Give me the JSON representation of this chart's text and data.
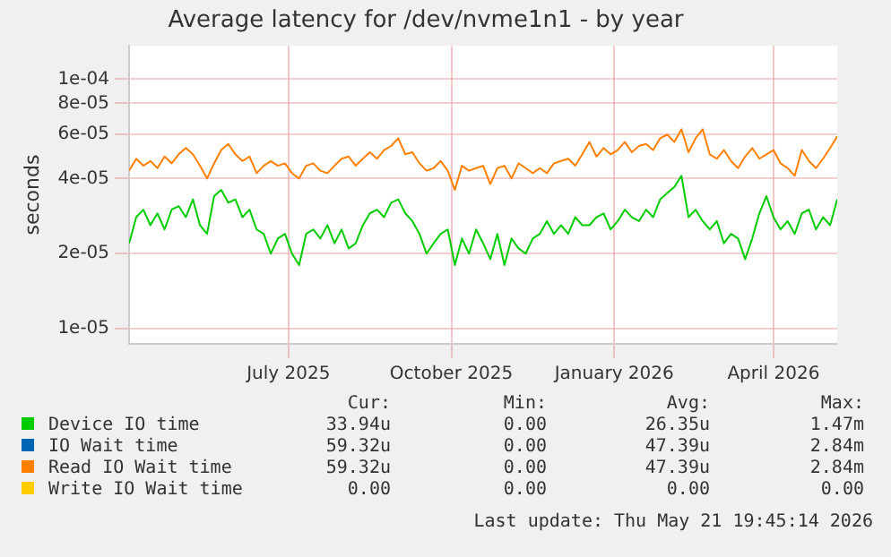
{
  "chart_data": {
    "type": "line",
    "title": "Average latency for /dev/nvme1n1 - by year",
    "ylabel": "seconds",
    "x": [
      "2025-04-16",
      "2025-04-20",
      "2025-04-24",
      "2025-04-28",
      "2025-05-02",
      "2025-05-06",
      "2025-05-10",
      "2025-05-14",
      "2025-05-18",
      "2025-05-22",
      "2025-05-26",
      "2025-05-30",
      "2025-06-03",
      "2025-06-07",
      "2025-06-11",
      "2025-06-15",
      "2025-06-19",
      "2025-06-23",
      "2025-06-27",
      "2025-07-01",
      "2025-07-05",
      "2025-07-09",
      "2025-07-13",
      "2025-07-17",
      "2025-07-21",
      "2025-07-25",
      "2025-07-29",
      "2025-08-02",
      "2025-08-06",
      "2025-08-10",
      "2025-08-14",
      "2025-08-18",
      "2025-08-22",
      "2025-08-26",
      "2025-08-30",
      "2025-09-03",
      "2025-09-07",
      "2025-09-11",
      "2025-09-15",
      "2025-09-19",
      "2025-09-23",
      "2025-09-27",
      "2025-10-01",
      "2025-10-05",
      "2025-10-09",
      "2025-10-13",
      "2025-10-17",
      "2025-10-21",
      "2025-10-25",
      "2025-10-29",
      "2025-11-02",
      "2025-11-06",
      "2025-11-10",
      "2025-11-14",
      "2025-11-18",
      "2025-11-22",
      "2025-11-26",
      "2025-11-30",
      "2025-12-04",
      "2025-12-08",
      "2025-12-12",
      "2025-12-16",
      "2025-12-20",
      "2025-12-24",
      "2025-12-28",
      "2026-01-01",
      "2026-01-05",
      "2026-01-09",
      "2026-01-13",
      "2026-01-17",
      "2026-01-21",
      "2026-01-25",
      "2026-01-29",
      "2026-02-02",
      "2026-02-06",
      "2026-02-10",
      "2026-02-14",
      "2026-02-18",
      "2026-02-22",
      "2026-02-26",
      "2026-03-02",
      "2026-03-06",
      "2026-03-10",
      "2026-03-14",
      "2026-03-18",
      "2026-03-22",
      "2026-03-26",
      "2026-03-30",
      "2026-04-03",
      "2026-04-07",
      "2026-04-11",
      "2026-04-15",
      "2026-04-19",
      "2026-04-23",
      "2026-04-27",
      "2026-05-01",
      "2026-05-05",
      "2026-05-09",
      "2026-05-13",
      "2026-05-17",
      "2026-05-21"
    ],
    "series": [
      {
        "name": "Device IO time",
        "color": "#00cc00",
        "values": [
          2.2e-05,
          2.8e-05,
          3e-05,
          2.6e-05,
          2.9e-05,
          2.5e-05,
          3e-05,
          3.1e-05,
          2.8e-05,
          3.3e-05,
          2.6e-05,
          2.4e-05,
          3.4e-05,
          3.6e-05,
          3.2e-05,
          3.3e-05,
          2.8e-05,
          3e-05,
          2.5e-05,
          2.4e-05,
          2e-05,
          2.3e-05,
          2.4e-05,
          2e-05,
          1.8e-05,
          2.4e-05,
          2.5e-05,
          2.3e-05,
          2.6e-05,
          2.2e-05,
          2.5e-05,
          2.1e-05,
          2.2e-05,
          2.6e-05,
          2.9e-05,
          3e-05,
          2.8e-05,
          3.2e-05,
          3.3e-05,
          2.9e-05,
          2.7e-05,
          2.4e-05,
          2e-05,
          2.2e-05,
          2.4e-05,
          2.5e-05,
          1.8e-05,
          2.3e-05,
          2e-05,
          2.5e-05,
          2.2e-05,
          1.9e-05,
          2.4e-05,
          1.8e-05,
          2.3e-05,
          2.1e-05,
          2e-05,
          2.3e-05,
          2.4e-05,
          2.7e-05,
          2.4e-05,
          2.6e-05,
          2.4e-05,
          2.8e-05,
          2.6e-05,
          2.6e-05,
          2.8e-05,
          2.9e-05,
          2.5e-05,
          2.7e-05,
          3e-05,
          2.8e-05,
          2.7e-05,
          3e-05,
          2.8e-05,
          3.3e-05,
          3.5e-05,
          3.7e-05,
          4.1e-05,
          2.8e-05,
          3e-05,
          2.7e-05,
          2.5e-05,
          2.7e-05,
          2.2e-05,
          2.4e-05,
          2.3e-05,
          1.9e-05,
          2.3e-05,
          2.9e-05,
          3.4e-05,
          2.8e-05,
          2.5e-05,
          2.7e-05,
          2.4e-05,
          2.9e-05,
          3e-05,
          2.5e-05,
          2.8e-05,
          2.6e-05,
          3.3e-05
        ]
      },
      {
        "name": "IO Wait time",
        "color": "#0066b3",
        "values": [
          null,
          null,
          null,
          null,
          null,
          null,
          null,
          null,
          null,
          null,
          null,
          null,
          null,
          null,
          null,
          null,
          null,
          null,
          null,
          null,
          null,
          null,
          null,
          null,
          null,
          null,
          null,
          null,
          null,
          null,
          null,
          null,
          null,
          null,
          null,
          null,
          null,
          null,
          null,
          null,
          null,
          null,
          null,
          null,
          null,
          null,
          null,
          null,
          null,
          null,
          null,
          null,
          null,
          null,
          null,
          null,
          null,
          null,
          null,
          null,
          null,
          null,
          null,
          null,
          null,
          null,
          null,
          null,
          null,
          null,
          null,
          null,
          null,
          null,
          null,
          null,
          null,
          null,
          null,
          null,
          null,
          null,
          null,
          null,
          null,
          null,
          null,
          null,
          null,
          null,
          null,
          null,
          null,
          null,
          null,
          null,
          null,
          null,
          null,
          null,
          null
        ]
      },
      {
        "name": "Read IO Wait time",
        "color": "#ff8000",
        "values": [
          4.3e-05,
          4.8e-05,
          4.5e-05,
          4.7e-05,
          4.4e-05,
          4.9e-05,
          4.6e-05,
          5e-05,
          5.3e-05,
          5e-05,
          4.5e-05,
          4e-05,
          4.6e-05,
          5.2e-05,
          5.5e-05,
          5e-05,
          4.7e-05,
          4.9e-05,
          4.2e-05,
          4.5e-05,
          4.7e-05,
          4.5e-05,
          4.6e-05,
          4.2e-05,
          4e-05,
          4.5e-05,
          4.6e-05,
          4.3e-05,
          4.2e-05,
          4.5e-05,
          4.8e-05,
          4.9e-05,
          4.5e-05,
          4.8e-05,
          5.1e-05,
          4.8e-05,
          5.2e-05,
          5.4e-05,
          5.8e-05,
          5e-05,
          5.1e-05,
          4.6e-05,
          4.3e-05,
          4.4e-05,
          4.7e-05,
          4.3e-05,
          3.6e-05,
          4.5e-05,
          4.3e-05,
          4.4e-05,
          4.5e-05,
          3.8e-05,
          4.4e-05,
          4.5e-05,
          4e-05,
          4.6e-05,
          4.4e-05,
          4.2e-05,
          4.4e-05,
          4.2e-05,
          4.6e-05,
          4.7e-05,
          4.8e-05,
          4.5e-05,
          5e-05,
          5.6e-05,
          4.9e-05,
          5.3e-05,
          5e-05,
          5.2e-05,
          5.6e-05,
          5.1e-05,
          5.4e-05,
          5.5e-05,
          5.2e-05,
          5.8e-05,
          6e-05,
          5.6e-05,
          6.3e-05,
          5.1e-05,
          5.8e-05,
          6.3e-05,
          5e-05,
          4.8e-05,
          5.2e-05,
          4.7e-05,
          4.4e-05,
          4.9e-05,
          5.3e-05,
          4.8e-05,
          5e-05,
          5.2e-05,
          4.6e-05,
          4.4e-05,
          4.1e-05,
          5.2e-05,
          4.7e-05,
          4.4e-05,
          4.8e-05,
          5.3e-05,
          5.9e-05
        ]
      },
      {
        "name": "Write IO Wait time",
        "color": "#ffcc00",
        "values": [
          null,
          null,
          null,
          null,
          null,
          null,
          null,
          null,
          null,
          null,
          null,
          null,
          null,
          null,
          null,
          null,
          null,
          null,
          null,
          null,
          null,
          null,
          null,
          null,
          null,
          null,
          null,
          null,
          null,
          null,
          null,
          null,
          null,
          null,
          null,
          null,
          null,
          null,
          null,
          null,
          null,
          null,
          null,
          null,
          null,
          null,
          null,
          null,
          null,
          null,
          null,
          null,
          null,
          null,
          null,
          null,
          null,
          null,
          null,
          null,
          null,
          null,
          null,
          null,
          null,
          null,
          null,
          null,
          null,
          null,
          null,
          null,
          null,
          null,
          null,
          null,
          null,
          null,
          null,
          null,
          null,
          null,
          null,
          null,
          null,
          null,
          null,
          null,
          null,
          null,
          null,
          null,
          null,
          null,
          null,
          null,
          null,
          null,
          null,
          null,
          null
        ]
      }
    ],
    "log": "y",
    "xlim": [
      "2025-04-16",
      "2026-05-21"
    ],
    "ylim": [
      8.7e-06,
      0.000136
    ],
    "xticks": [
      {
        "value": "2025-07-15",
        "label": "July 2025"
      },
      {
        "value": "2025-10-15",
        "label": "October 2025"
      },
      {
        "value": "2026-01-15",
        "label": "January 2026"
      },
      {
        "value": "2026-04-15",
        "label": "April 2026"
      }
    ],
    "yticks": [
      {
        "value": 1e-05,
        "label": "1e-05"
      },
      {
        "value": 2e-05,
        "label": "2e-05"
      },
      {
        "value": 4e-05,
        "label": "4e-05"
      },
      {
        "value": 6e-05,
        "label": "6e-05"
      },
      {
        "value": 8e-05,
        "label": "8e-05"
      },
      {
        "value": 0.0001,
        "label": "1e-04"
      }
    ],
    "grid": true,
    "legend": "bottom",
    "marker": "none",
    "line_style": "solid",
    "annotations": [
      "Cur:",
      "Min:",
      "Avg:",
      "Max:",
      "33.94u",
      "0.00",
      "26.35u",
      "1.47m",
      "59.32u",
      "0.00",
      "47.39u",
      "2.84m",
      "59.32u",
      "0.00",
      "47.39u",
      "2.84m",
      "0.00",
      "0.00",
      "0.00",
      "0.00",
      "Last update: Thu May 21 19:45:14 2026"
    ]
  }
}
